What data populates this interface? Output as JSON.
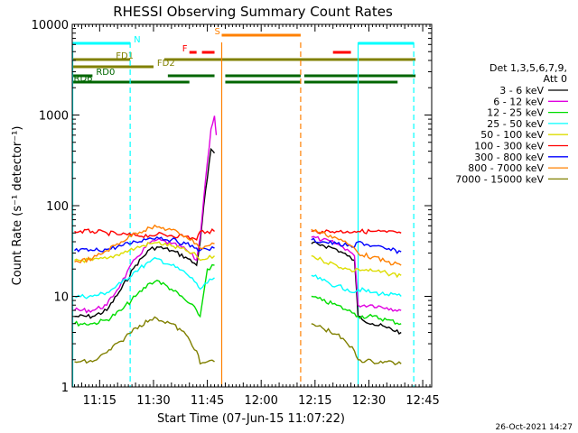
{
  "chart_data": {
    "type": "line",
    "title": "RHESSI Observing Summary Count Rates",
    "xlabel": "Start Time (07-Jun-15 11:07:22)",
    "ylabel": "Count Rate (s⁻¹ detector⁻¹)",
    "y_scale": "log",
    "ylim": [
      1,
      10000
    ],
    "xlim": [
      "11:07:22",
      "12:47:30"
    ],
    "x_ticks": [
      "11:15",
      "11:30",
      "11:45",
      "12:00",
      "12:15",
      "12:30",
      "12:45"
    ],
    "y_ticks": [
      "1",
      "10",
      "100",
      "1000",
      "10000"
    ],
    "timestamp": "26-Oct-2021 14:27",
    "legend_position": "right",
    "legend_header": [
      "Det 1,3,5,6,7,9,",
      "Att 0"
    ],
    "series": [
      {
        "name": "3 - 6 keV",
        "color": "#000000",
        "points": [
          [
            "11:08",
            6
          ],
          [
            "11:13",
            6
          ],
          [
            "11:17",
            7
          ],
          [
            "11:21",
            12
          ],
          [
            "11:25",
            22
          ],
          [
            "11:29",
            33
          ],
          [
            "11:31",
            35
          ],
          [
            "11:35",
            32
          ],
          [
            "11:39",
            27
          ],
          [
            "11:42",
            22
          ],
          [
            "11:43",
            40
          ],
          [
            "11:44",
            100
          ],
          [
            "11:45",
            200
          ],
          [
            "11:46",
            420
          ],
          [
            "11:47",
            380
          ],
          [
            "12:14",
            38
          ],
          [
            "12:17",
            37
          ],
          [
            "12:21",
            33
          ],
          [
            "12:24",
            28
          ],
          [
            "12:26",
            25
          ],
          [
            "12:27",
            6
          ],
          [
            "12:31",
            5
          ],
          [
            "12:35",
            4.5
          ],
          [
            "12:39",
            4
          ]
        ]
      },
      {
        "name": "6 - 12 keV",
        "color": "#e000e0",
        "points": [
          [
            "11:08",
            7
          ],
          [
            "11:13",
            7
          ],
          [
            "11:17",
            8
          ],
          [
            "11:21",
            14
          ],
          [
            "11:25",
            26
          ],
          [
            "11:29",
            39
          ],
          [
            "11:31",
            42
          ],
          [
            "11:35",
            38
          ],
          [
            "11:39",
            33
          ],
          [
            "11:42",
            25
          ],
          [
            "11:43",
            45
          ],
          [
            "11:44",
            120
          ],
          [
            "11:45",
            300
          ],
          [
            "11:46",
            700
          ],
          [
            "11:47",
            980
          ],
          [
            "11:47.5",
            600
          ],
          [
            "12:14",
            45
          ],
          [
            "12:17",
            42
          ],
          [
            "12:21",
            38
          ],
          [
            "12:24",
            33
          ],
          [
            "12:26",
            28
          ],
          [
            "12:27",
            8
          ],
          [
            "12:31",
            8
          ],
          [
            "12:35",
            7.5
          ],
          [
            "12:39",
            7
          ]
        ]
      },
      {
        "name": "12 - 25 keV",
        "color": "#00dd00",
        "points": [
          [
            "11:08",
            5
          ],
          [
            "11:13",
            5
          ],
          [
            "11:17",
            5.5
          ],
          [
            "11:21",
            7
          ],
          [
            "11:25",
            10
          ],
          [
            "11:29",
            14
          ],
          [
            "11:31",
            15
          ],
          [
            "11:35",
            12
          ],
          [
            "11:39",
            9
          ],
          [
            "11:42",
            7
          ],
          [
            "11:43",
            6
          ],
          [
            "11:45",
            20
          ],
          [
            "11:47",
            22
          ],
          [
            "12:14",
            10
          ],
          [
            "12:17",
            9
          ],
          [
            "12:21",
            8
          ],
          [
            "12:24",
            7
          ],
          [
            "12:26",
            6.5
          ],
          [
            "12:27",
            6
          ],
          [
            "12:31",
            6
          ],
          [
            "12:35",
            5.5
          ],
          [
            "12:39",
            5
          ]
        ]
      },
      {
        "name": "25 - 50 keV",
        "color": "#00ffff",
        "points": [
          [
            "11:08",
            10
          ],
          [
            "11:13",
            10
          ],
          [
            "11:17",
            11
          ],
          [
            "11:21",
            14
          ],
          [
            "11:25",
            19
          ],
          [
            "11:29",
            24
          ],
          [
            "11:31",
            26
          ],
          [
            "11:35",
            22
          ],
          [
            "11:39",
            18
          ],
          [
            "11:42",
            14
          ],
          [
            "11:43",
            12
          ],
          [
            "11:45",
            14
          ],
          [
            "11:47",
            16
          ],
          [
            "12:14",
            17
          ],
          [
            "12:17",
            15
          ],
          [
            "12:21",
            13
          ],
          [
            "12:24",
            12
          ],
          [
            "12:26",
            11
          ],
          [
            "12:27",
            12
          ],
          [
            "12:31",
            11
          ],
          [
            "12:35",
            10.5
          ],
          [
            "12:39",
            10
          ]
        ]
      },
      {
        "name": "50 - 100 keV",
        "color": "#dddd00",
        "points": [
          [
            "11:08",
            25
          ],
          [
            "11:13",
            25
          ],
          [
            "11:17",
            26
          ],
          [
            "11:21",
            30
          ],
          [
            "11:25",
            34
          ],
          [
            "11:29",
            38
          ],
          [
            "11:31",
            39
          ],
          [
            "11:35",
            36
          ],
          [
            "11:39",
            32
          ],
          [
            "11:42",
            28
          ],
          [
            "11:43",
            25
          ],
          [
            "11:45",
            26
          ],
          [
            "11:47",
            28
          ],
          [
            "12:14",
            28
          ],
          [
            "12:17",
            25
          ],
          [
            "12:21",
            22
          ],
          [
            "12:24",
            20
          ],
          [
            "12:26",
            19
          ],
          [
            "12:27",
            20
          ],
          [
            "12:31",
            19
          ],
          [
            "12:35",
            18
          ],
          [
            "12:39",
            17
          ]
        ]
      },
      {
        "name": "100 - 300 keV",
        "color": "#ff0000",
        "points": [
          [
            "11:08",
            52
          ],
          [
            "11:13",
            52
          ],
          [
            "11:17",
            50
          ],
          [
            "11:21",
            48
          ],
          [
            "11:25",
            47
          ],
          [
            "11:29",
            47
          ],
          [
            "11:31",
            48
          ],
          [
            "11:35",
            47
          ],
          [
            "11:39",
            46
          ],
          [
            "11:42",
            42
          ],
          [
            "11:43",
            52
          ],
          [
            "11:45",
            52
          ],
          [
            "11:47",
            52
          ],
          [
            "12:14",
            52
          ],
          [
            "12:17",
            52
          ],
          [
            "12:21",
            52
          ],
          [
            "12:24",
            52
          ],
          [
            "12:26",
            52
          ],
          [
            "12:27",
            52
          ],
          [
            "12:31",
            52
          ],
          [
            "12:35",
            51
          ],
          [
            "12:39",
            50
          ]
        ]
      },
      {
        "name": "300 - 800 keV",
        "color": "#0000ff",
        "points": [
          [
            "11:08",
            32
          ],
          [
            "11:13",
            32
          ],
          [
            "11:17",
            33
          ],
          [
            "11:21",
            36
          ],
          [
            "11:25",
            40
          ],
          [
            "11:29",
            44
          ],
          [
            "11:31",
            45
          ],
          [
            "11:35",
            42
          ],
          [
            "11:39",
            38
          ],
          [
            "11:42",
            34
          ],
          [
            "11:43",
            32
          ],
          [
            "11:45",
            33
          ],
          [
            "11:47",
            34
          ],
          [
            "12:14",
            42
          ],
          [
            "12:17",
            40
          ],
          [
            "12:21",
            38
          ],
          [
            "12:24",
            36
          ],
          [
            "12:26",
            35
          ],
          [
            "12:27",
            40
          ],
          [
            "12:31",
            36
          ],
          [
            "12:35",
            33
          ],
          [
            "12:39",
            31
          ]
        ]
      },
      {
        "name": "800 - 7000 keV",
        "color": "#ff8000",
        "points": [
          [
            "11:08",
            24
          ],
          [
            "11:13",
            26
          ],
          [
            "11:17",
            32
          ],
          [
            "11:21",
            40
          ],
          [
            "11:25",
            50
          ],
          [
            "11:29",
            57
          ],
          [
            "11:31",
            58
          ],
          [
            "11:35",
            54
          ],
          [
            "11:39",
            46
          ],
          [
            "11:42",
            38
          ],
          [
            "11:43",
            34
          ],
          [
            "11:45",
            36
          ],
          [
            "11:47",
            38
          ],
          [
            "12:14",
            55
          ],
          [
            "12:17",
            50
          ],
          [
            "12:21",
            44
          ],
          [
            "12:24",
            38
          ],
          [
            "12:26",
            34
          ],
          [
            "12:27",
            30
          ],
          [
            "12:31",
            27
          ],
          [
            "12:35",
            24
          ],
          [
            "12:39",
            22
          ]
        ]
      },
      {
        "name": "7000 - 15000 keV",
        "color": "#808000",
        "points": [
          [
            "11:08",
            1.9
          ],
          [
            "11:13",
            1.9
          ],
          [
            "11:17",
            2.4
          ],
          [
            "11:21",
            3.2
          ],
          [
            "11:25",
            4.5
          ],
          [
            "11:29",
            5.5
          ],
          [
            "11:31",
            5.7
          ],
          [
            "11:35",
            5
          ],
          [
            "11:39",
            3.8
          ],
          [
            "11:42",
            2.5
          ],
          [
            "11:43",
            1.8
          ],
          [
            "11:45",
            1.9
          ],
          [
            "11:47",
            1.9
          ],
          [
            "12:14",
            5
          ],
          [
            "12:17",
            4.5
          ],
          [
            "12:21",
            3.8
          ],
          [
            "12:24",
            3
          ],
          [
            "12:26",
            2.5
          ],
          [
            "12:27",
            2
          ],
          [
            "12:31",
            1.9
          ],
          [
            "12:35",
            1.9
          ],
          [
            "12:39",
            1.8
          ]
        ]
      }
    ],
    "flag_bars": [
      {
        "label": "N",
        "color": "#00ffff",
        "level": 1,
        "spans": [
          [
            "11:07.5",
            "11:23.5"
          ],
          [
            "12:27",
            "12:42.5"
          ]
        ]
      },
      {
        "label": "S",
        "color": "#ff8000",
        "level": 2,
        "spans": [
          [
            "11:49",
            "12:11"
          ]
        ]
      },
      {
        "label": "F",
        "color": "#ff0000",
        "level": 3,
        "spans": [
          [
            "11:40",
            "11:42"
          ],
          [
            "11:43.5",
            "11:47"
          ],
          [
            "12:20",
            "12:25"
          ]
        ]
      },
      {
        "label": "FD1",
        "color": "#808000",
        "level": 4,
        "spans": [
          [
            "11:07.5",
            "11:23.5"
          ],
          [
            "11:33",
            "12:43"
          ]
        ]
      },
      {
        "label": "FD2",
        "color": "#808000",
        "level": 5,
        "spans": [
          [
            "11:07.5",
            "11:30"
          ]
        ]
      },
      {
        "label": "RD0",
        "color": "#006600",
        "level": 6,
        "spans": [
          [
            "11:07.5",
            "11:13"
          ],
          [
            "11:34",
            "11:47"
          ],
          [
            "11:50",
            "12:11"
          ],
          [
            "12:12",
            "12:43"
          ]
        ]
      },
      {
        "label": "RD6",
        "color": "#006600",
        "level": 7,
        "spans": [
          [
            "11:07.5",
            "11:40"
          ],
          [
            "11:50",
            "12:11"
          ],
          [
            "12:12",
            "12:38"
          ]
        ]
      }
    ],
    "markers": [
      {
        "time": "11:07.5",
        "color": "#00ffff",
        "style": "solid"
      },
      {
        "time": "11:23.5",
        "color": "#00ffff",
        "style": "dashed"
      },
      {
        "time": "11:49",
        "color": "#ff8000",
        "style": "solid"
      },
      {
        "time": "12:11",
        "color": "#ff8000",
        "style": "dashed"
      },
      {
        "time": "12:27",
        "color": "#00ffff",
        "style": "solid"
      },
      {
        "time": "12:42.5",
        "color": "#00ffff",
        "style": "dashed"
      }
    ]
  }
}
